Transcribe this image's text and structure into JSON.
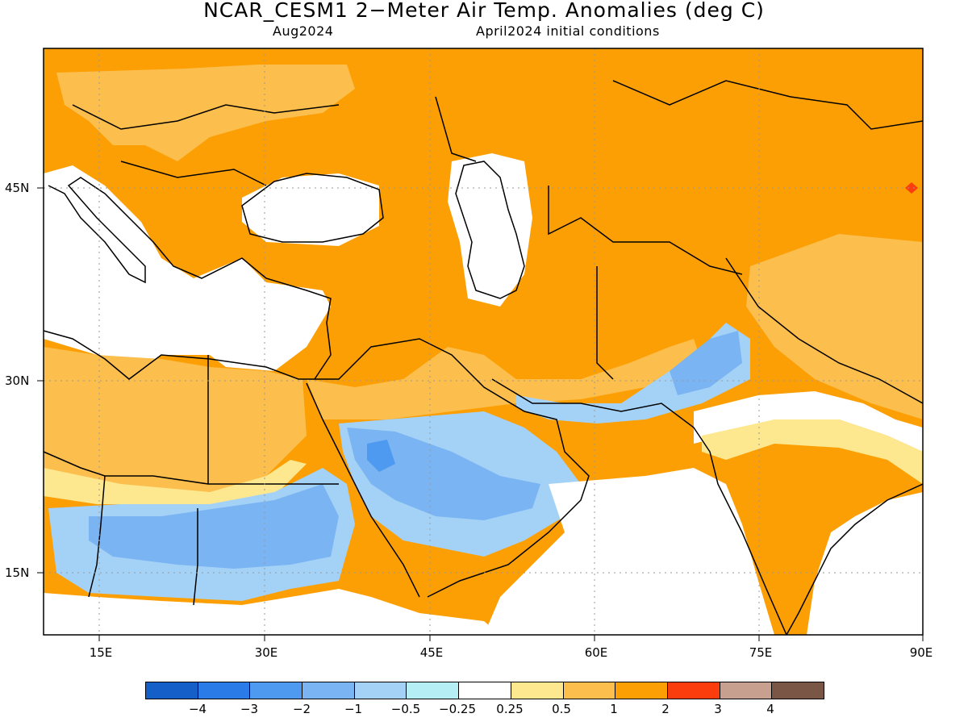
{
  "title": "NCAR_CESM1 2−Meter Air Temp. Anomalies (deg C)",
  "subtitle_left": "Aug2024",
  "subtitle_right": "April2024 initial conditions",
  "lat_labels": [
    "45N",
    "30N",
    "15N"
  ],
  "lon_labels": [
    "15E",
    "30E",
    "45E",
    "60E",
    "75E",
    "90E"
  ],
  "colorbar": {
    "colors": [
      "#1560c8",
      "#2a7ae8",
      "#4d9af0",
      "#7ab4f2",
      "#a4d2f6",
      "#b6eef6",
      "#ffffff",
      "#fde890",
      "#fcbe4c",
      "#fb9f04",
      "#fb3c0c",
      "#c8a090",
      "#7a5646"
    ],
    "labels": [
      "−4",
      "−3",
      "−2",
      "−1",
      "−0.5",
      "−0.25",
      "0.25",
      "0.5",
      "1",
      "2",
      "3",
      "4"
    ]
  },
  "map_data": {
    "region": {
      "lon_range": [
        10,
        90
      ],
      "lat_range": [
        10,
        55
      ]
    },
    "graticule_lons": [
      15,
      30,
      45,
      60,
      75,
      90
    ],
    "graticule_lats": [
      15,
      30,
      45
    ],
    "dominant_anomaly": "1 to 2 deg C over Europe, Turkey, Iran, Central Asia, Kazakhstan, India",
    "cool_anomaly_regions": [
      "Sahel",
      "Saudi Arabia",
      "Pakistan",
      "Persian Gulf coast"
    ],
    "warm_spot": "3 deg C near 89E 45N"
  }
}
